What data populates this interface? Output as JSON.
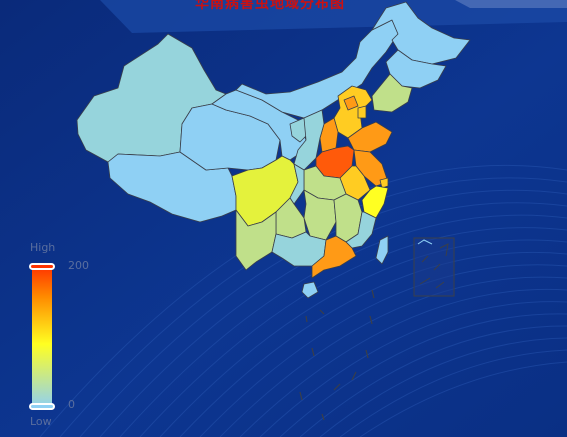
{
  "title": "华南病害虫地域分布图",
  "visual_map": {
    "high_text": "High",
    "low_text": "Low",
    "max_label": "200",
    "min_label": "0",
    "min": 0,
    "max": 200,
    "color_stops": [
      "#8fd0f4",
      "#ffff22",
      "#ff8c00",
      "#ff3300"
    ]
  },
  "colors": {
    "background": "#0b2f86",
    "border": "#3a3f4a",
    "title": "#cc1111",
    "region_colors": [
      "#8fd0f4",
      "#96d4dc",
      "#c0e08a",
      "#e4f23c",
      "#ffcc22",
      "#ff9a16",
      "#ff5a0a"
    ]
  }
}
